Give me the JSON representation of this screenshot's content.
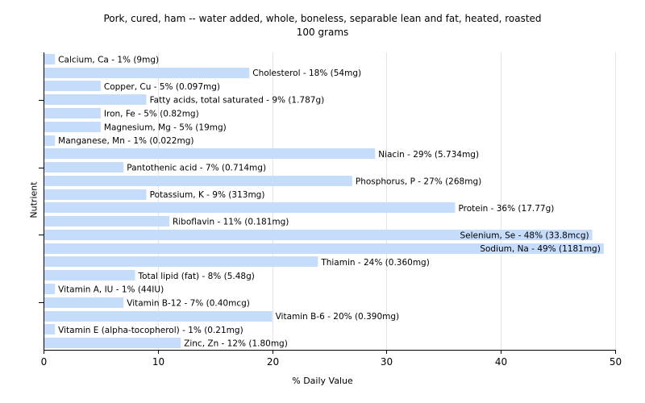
{
  "chart_data": {
    "type": "bar",
    "orientation": "horizontal",
    "title": "Pork, cured, ham -- water added, whole, boneless, separable lean and fat, heated, roasted",
    "subtitle": "100 grams",
    "xlabel": "% Daily Value",
    "ylabel": "Nutrient",
    "xlim": [
      0,
      50
    ],
    "xticks": [
      "0",
      "10",
      "20",
      "30",
      "40",
      "50"
    ],
    "grid": true,
    "bar_color": "#c6dcfb",
    "categories": [
      "Calcium, Ca",
      "Cholesterol",
      "Copper, Cu",
      "Fatty acids, total saturated",
      "Iron, Fe",
      "Magnesium, Mg",
      "Manganese, Mn",
      "Niacin",
      "Pantothenic acid",
      "Phosphorus, P",
      "Potassium, K",
      "Protein",
      "Riboflavin",
      "Selenium, Se",
      "Sodium, Na",
      "Thiamin",
      "Total lipid (fat)",
      "Vitamin A, IU",
      "Vitamin B-12",
      "Vitamin B-6",
      "Vitamin E (alpha-tocopherol)",
      "Zinc, Zn"
    ],
    "values": [
      1,
      18,
      5,
      9,
      5,
      5,
      1,
      29,
      7,
      27,
      9,
      36,
      11,
      48,
      49,
      24,
      8,
      1,
      7,
      20,
      1,
      12
    ],
    "labels": [
      "Calcium, Ca - 1% (9mg)",
      "Cholesterol - 18% (54mg)",
      "Copper, Cu - 5% (0.097mg)",
      "Fatty acids, total saturated - 9% (1.787g)",
      "Iron, Fe - 5% (0.82mg)",
      "Magnesium, Mg - 5% (19mg)",
      "Manganese, Mn - 1% (0.022mg)",
      "Niacin - 29% (5.734mg)",
      "Pantothenic acid - 7% (0.714mg)",
      "Phosphorus, P - 27% (268mg)",
      "Potassium, K - 9% (313mg)",
      "Protein - 36% (17.77g)",
      "Riboflavin - 11% (0.181mg)",
      "Selenium, Se - 48% (33.8mcg)",
      "Sodium, Na - 49% (1181mg)",
      "Thiamin - 24% (0.360mg)",
      "Total lipid (fat) - 8% (5.48g)",
      "Vitamin A, IU - 1% (44IU)",
      "Vitamin B-12 - 7% (0.40mcg)",
      "Vitamin B-6 - 20% (0.390mg)",
      "Vitamin E (alpha-tocopherol) - 1% (0.21mg)",
      "Zinc, Zn - 12% (1.80mg)"
    ]
  }
}
